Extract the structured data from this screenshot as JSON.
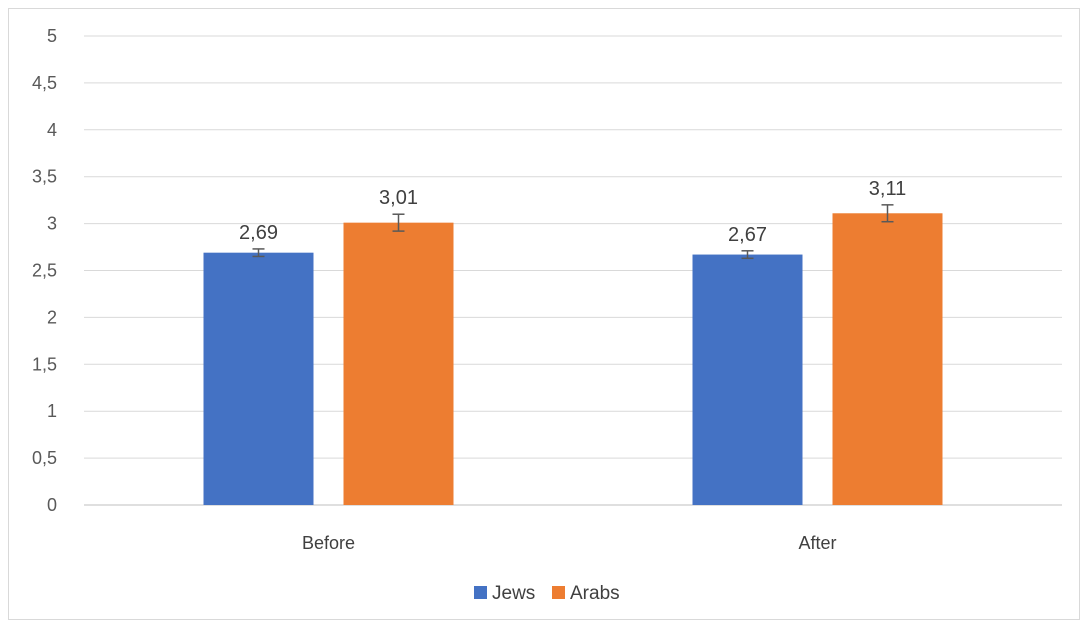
{
  "chart_data": {
    "type": "bar",
    "categories": [
      "Before",
      "After"
    ],
    "series": [
      {
        "name": "Jews",
        "color": "#4472C4",
        "values": [
          2.69,
          2.67
        ],
        "labels": [
          "2,69",
          "2,67"
        ],
        "error": [
          0.04,
          0.04
        ]
      },
      {
        "name": "Arabs",
        "color": "#ED7D31",
        "values": [
          3.01,
          3.11
        ],
        "labels": [
          "3,01",
          "3,11"
        ],
        "error": [
          0.09,
          0.09
        ]
      }
    ],
    "ylim": [
      0,
      5
    ],
    "yticks": [
      0,
      0.5,
      1,
      1.5,
      2,
      2.5,
      3,
      3.5,
      4,
      4.5,
      5
    ],
    "ytick_labels": [
      "0",
      "0,5",
      "1",
      "1,5",
      "2",
      "2,5",
      "3",
      "3,5",
      "4",
      "4,5",
      "5"
    ],
    "grid": true,
    "legend": "bottom",
    "title": "",
    "xlabel": "",
    "ylabel": ""
  }
}
